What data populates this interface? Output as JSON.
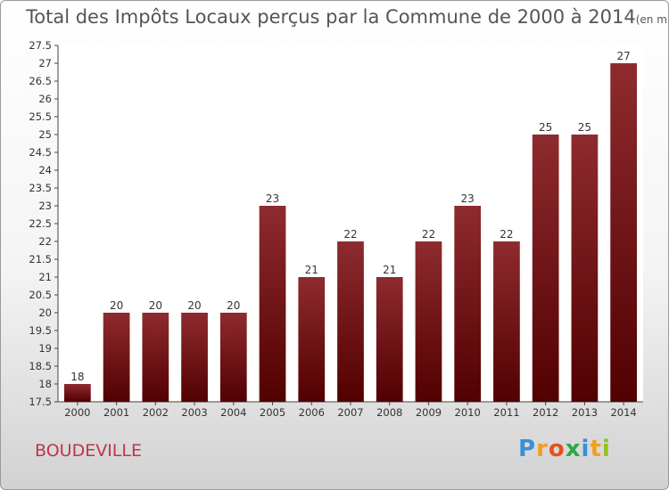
{
  "chart_data": {
    "type": "bar",
    "title": "Total des Impôts Locaux perçus par la Commune de 2000 à 2014",
    "subtitle": "(en milliers d'€)",
    "categories": [
      "2000",
      "2001",
      "2002",
      "2003",
      "2004",
      "2005",
      "2006",
      "2007",
      "2008",
      "2009",
      "2010",
      "2011",
      "2012",
      "2013",
      "2014"
    ],
    "values": [
      18,
      20,
      20,
      20,
      20,
      23,
      21,
      22,
      21,
      22,
      23,
      22,
      25,
      25,
      27
    ],
    "ylim": [
      17.5,
      27.5
    ],
    "ytick_step": 0.5,
    "bar_color": "#7a1a1e",
    "grid": false
  },
  "commune": "BOUDEVILLE",
  "logo": {
    "letters": [
      "P",
      "r",
      "o",
      "x",
      "i",
      "t",
      "i"
    ],
    "colors": [
      "#3a8fd6",
      "#f0a020",
      "#e94e1b",
      "#2aa84a",
      "#3a8fd6",
      "#f0a020",
      "#8fc31f"
    ]
  }
}
